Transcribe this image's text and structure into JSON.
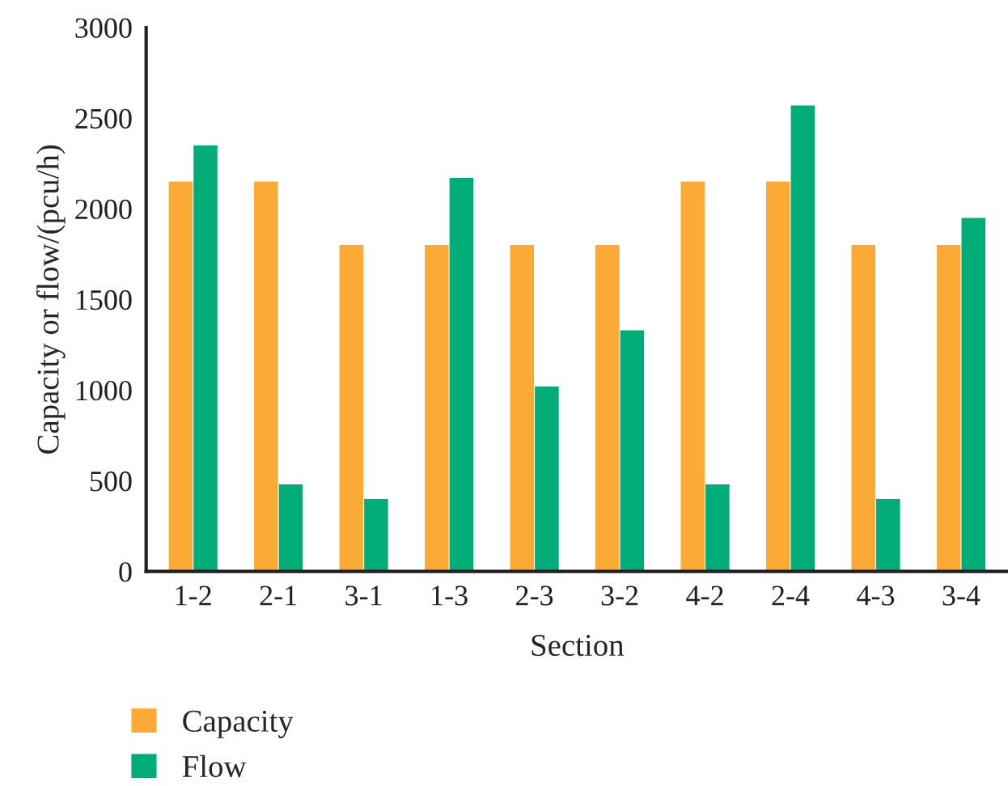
{
  "chart_data": {
    "type": "bar",
    "xlabel": "Section",
    "ylabel": "Capacity or flow/(pcu/h)",
    "categories": [
      "1-2",
      "2-1",
      "3-1",
      "1-3",
      "2-3",
      "3-2",
      "4-2",
      "2-4",
      "4-3",
      "3-4"
    ],
    "series": [
      {
        "name": "Capacity",
        "color": "#fbab35",
        "values": [
          2150,
          2150,
          1800,
          1800,
          1800,
          1800,
          2150,
          2150,
          1800,
          1800
        ]
      },
      {
        "name": "Flow",
        "color": "#00ac78",
        "values": [
          2350,
          480,
          400,
          2170,
          1020,
          1330,
          480,
          2570,
          400,
          1950
        ]
      }
    ],
    "ylim": [
      0,
      3000
    ],
    "yticks": [
      0,
      500,
      1000,
      1500,
      2000,
      2500,
      3000
    ],
    "grid": false,
    "legend": "bottom left"
  }
}
